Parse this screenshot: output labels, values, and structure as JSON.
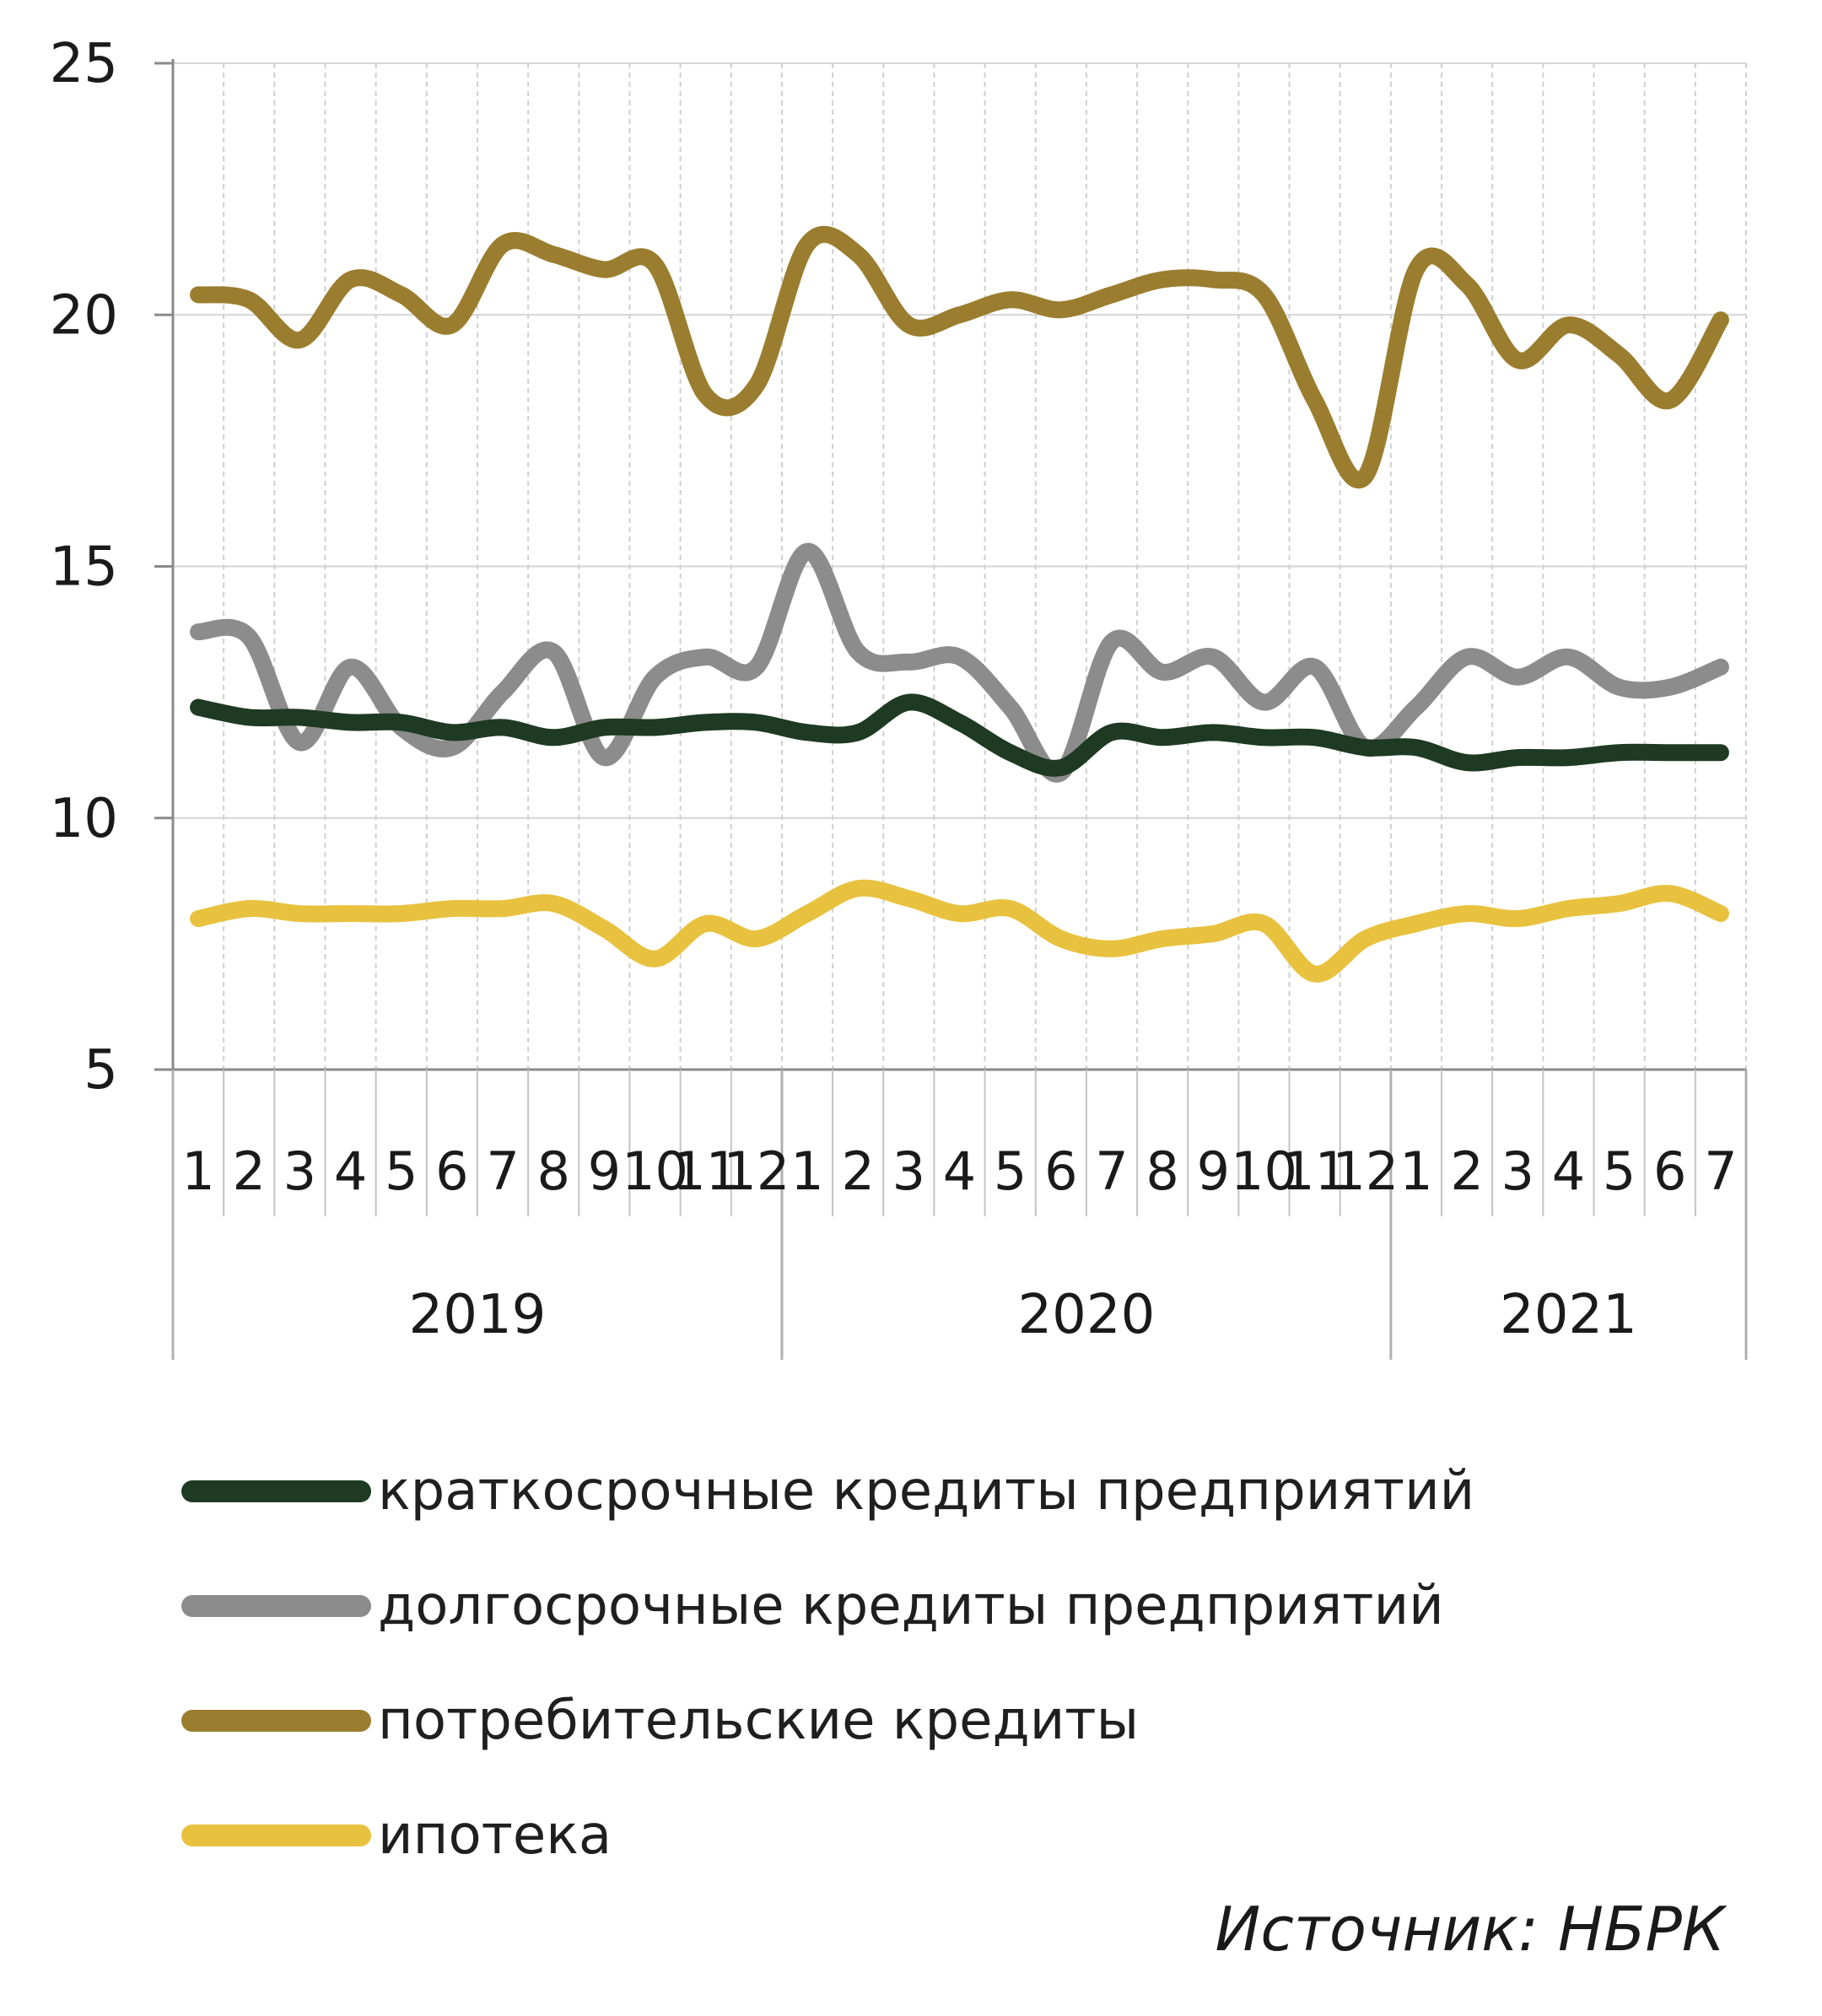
{
  "chart_data": {
    "type": "line",
    "y_ticks": [
      "25",
      "20",
      "15",
      "10",
      "5"
    ],
    "ylim": [
      5,
      25
    ],
    "grid": true,
    "x_month_labels": [
      "1",
      "2",
      "3",
      "4",
      "5",
      "6",
      "7",
      "8",
      "9",
      "10",
      "11",
      "12",
      "1",
      "2",
      "3",
      "4",
      "5",
      "6",
      "7",
      "8",
      "9",
      "10",
      "11",
      "12",
      "1",
      "2",
      "3",
      "4",
      "5",
      "6",
      "7"
    ],
    "years": [
      {
        "label": "2019",
        "start": 0,
        "count": 12
      },
      {
        "label": "2020",
        "start": 12,
        "count": 12
      },
      {
        "label": "2021",
        "start": 24,
        "count": 7
      }
    ],
    "series": [
      {
        "name": "потребительские кредиты",
        "color": "#9a7d2e",
        "values": [
          20.4,
          20.3,
          19.5,
          20.7,
          20.4,
          19.8,
          21.4,
          21.2,
          20.9,
          21.0,
          18.4,
          18.6,
          21.4,
          21.2,
          19.8,
          20.0,
          20.3,
          20.1,
          20.4,
          20.7,
          20.7,
          20.4,
          18.3,
          16.8,
          20.9,
          20.6,
          19.1,
          19.8,
          19.2,
          18.3,
          19.9
        ]
      },
      {
        "name": "долгосрочные кредиты предприятий",
        "color": "#8c8c8c",
        "values": [
          13.7,
          13.6,
          11.5,
          13.0,
          11.8,
          11.4,
          12.5,
          13.3,
          11.2,
          12.8,
          13.2,
          13.0,
          15.3,
          13.3,
          13.1,
          13.2,
          12.2,
          10.9,
          13.5,
          12.9,
          13.2,
          12.3,
          13.0,
          11.4,
          12.2,
          13.2,
          12.8,
          13.2,
          12.6,
          12.6,
          13.0
        ]
      },
      {
        "name": "краткосрочные кредиты предприятий",
        "color": "#1e3a22",
        "values": [
          12.2,
          12.0,
          12.0,
          11.9,
          11.9,
          11.7,
          11.8,
          11.6,
          11.8,
          11.8,
          11.9,
          11.9,
          11.7,
          11.7,
          12.3,
          11.9,
          11.3,
          11.0,
          11.7,
          11.6,
          11.7,
          11.6,
          11.6,
          11.4,
          11.4,
          11.1,
          11.2,
          11.2,
          11.3,
          11.3,
          11.3
        ]
      },
      {
        "name": "ипотека",
        "color": "#e8c23f",
        "values": [
          8.0,
          8.2,
          8.1,
          8.1,
          8.1,
          8.2,
          8.2,
          8.3,
          7.8,
          7.2,
          7.9,
          7.6,
          8.1,
          8.6,
          8.4,
          8.1,
          8.2,
          7.6,
          7.4,
          7.6,
          7.7,
          7.9,
          6.9,
          7.6,
          7.9,
          8.1,
          8.0,
          8.2,
          8.3,
          8.5,
          8.1
        ]
      }
    ]
  },
  "legend": [
    {
      "label": "краткосрочные кредиты предприятий",
      "color": "#1e3a22"
    },
    {
      "label": "долгосрочные кредиты предприятий",
      "color": "#8c8c8c"
    },
    {
      "label": "потребительские кредиты",
      "color": "#9a7d2e"
    },
    {
      "label": "ипотека",
      "color": "#e8c23f"
    }
  ],
  "source": "Источник: НБРК"
}
